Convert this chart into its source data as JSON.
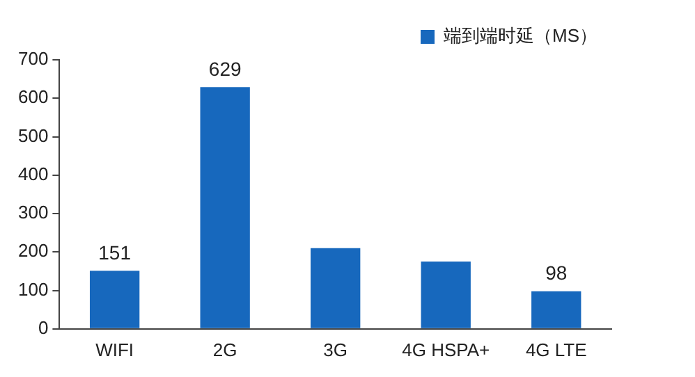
{
  "chart_data": {
    "type": "bar",
    "categories": [
      "WIFI",
      "2G",
      "3G",
      "4G HSPA+",
      "4G LTE"
    ],
    "series": [
      {
        "name": "端到端时延（MS）",
        "color": "#1768bd",
        "values": [
          151,
          629,
          210,
          175,
          98
        ],
        "value_labels": [
          "151",
          "629",
          null,
          null,
          "98"
        ]
      }
    ],
    "ylim": [
      0,
      700
    ],
    "yticks": [
      0,
      100,
      200,
      300,
      400,
      500,
      600,
      700
    ],
    "grid": false,
    "legend": "top right"
  }
}
